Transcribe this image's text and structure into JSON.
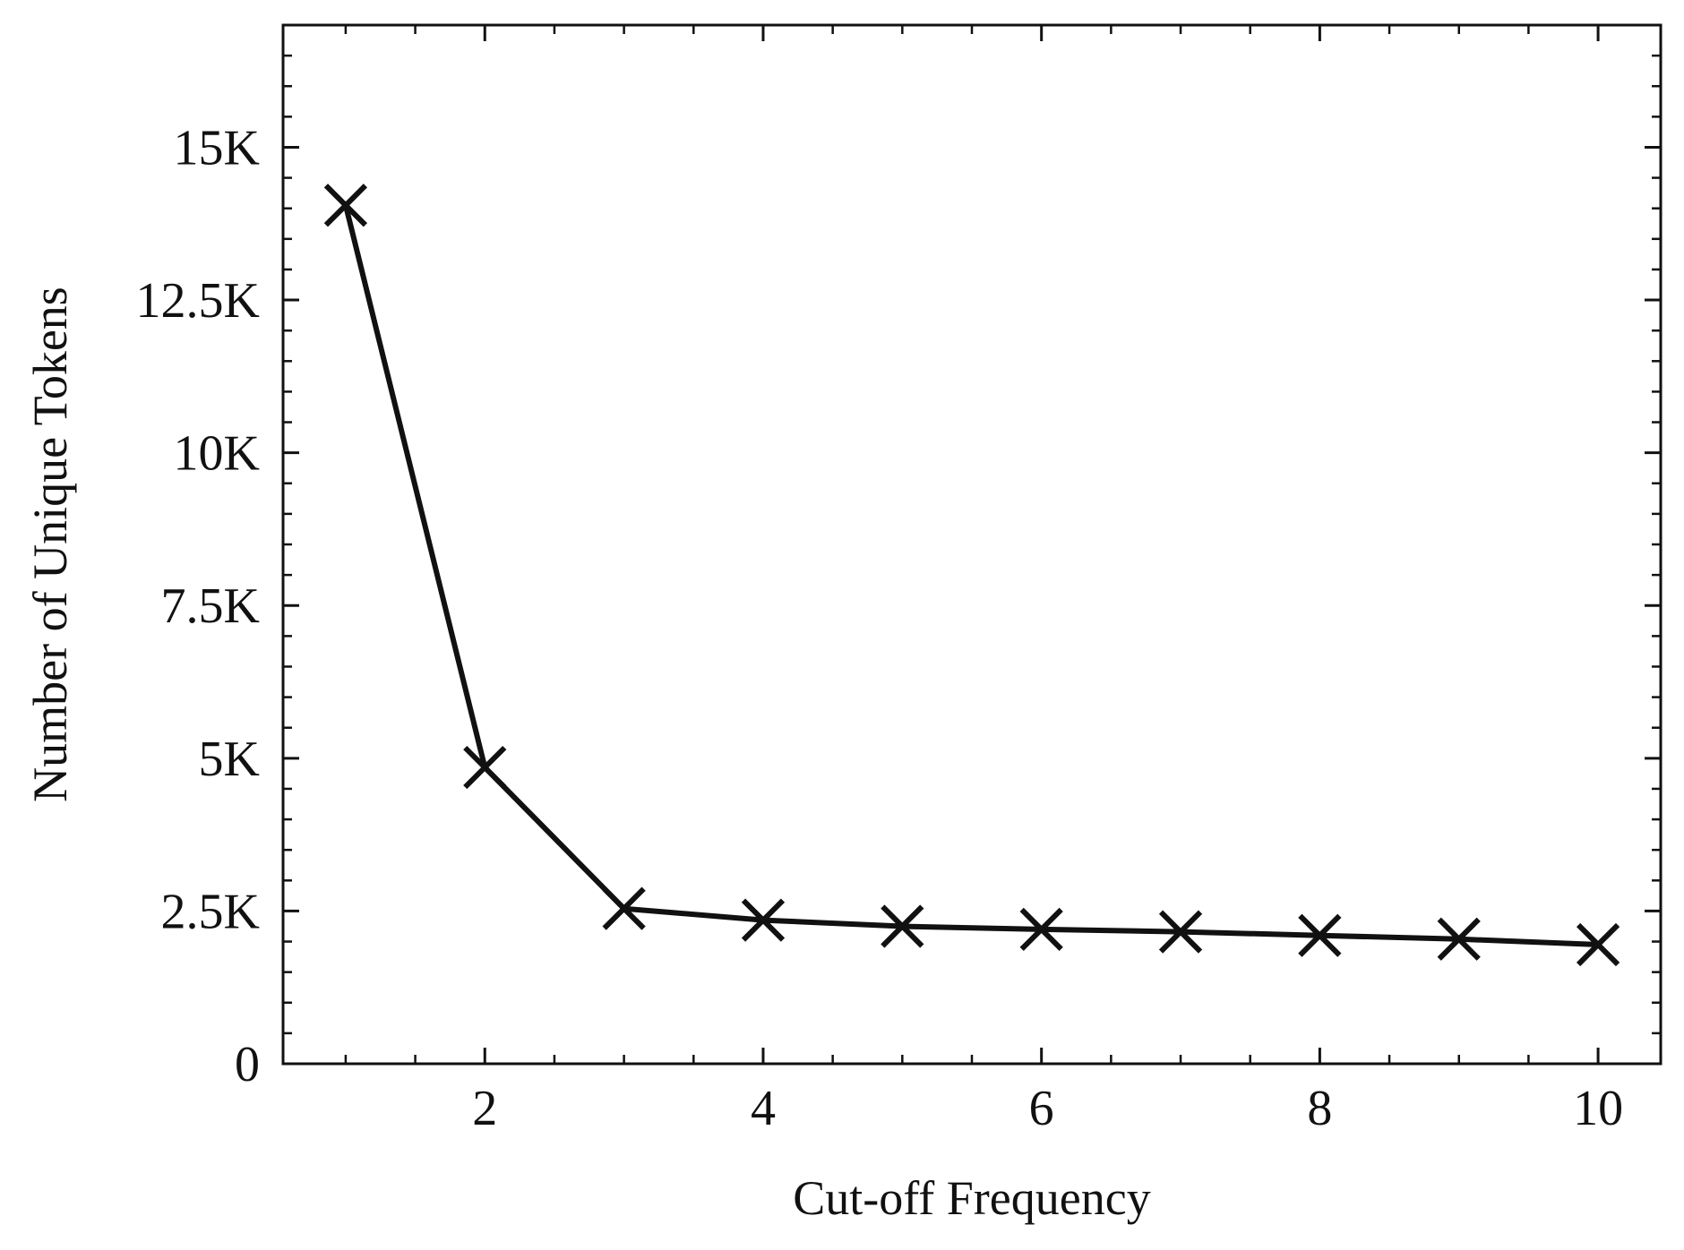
{
  "chart_data": {
    "type": "line",
    "title": "",
    "xlabel": "Cut-off Frequency",
    "ylabel": "Number of Unique Tokens",
    "x": [
      1,
      2,
      3,
      4,
      5,
      6,
      7,
      8,
      9,
      10
    ],
    "series": [
      {
        "values": [
          14050,
          4850,
          2540,
          2350,
          2250,
          2200,
          2160,
          2100,
          2040,
          1950
        ],
        "color": "#111111",
        "marker": "x"
      }
    ],
    "xlim": [
      0.55,
      10.45
    ],
    "ylim": [
      0,
      17000
    ],
    "xticks": [
      2,
      4,
      6,
      8,
      10
    ],
    "xtick_labels": [
      "2",
      "4",
      "6",
      "8",
      "10"
    ],
    "yticks": [
      0,
      2500,
      5000,
      7500,
      10000,
      12500,
      15000
    ],
    "ytick_labels": [
      "0",
      "2.5K",
      "5K",
      "7.5K",
      "10K",
      "12.5K",
      "15K"
    ],
    "x_minor_step": 0.5,
    "y_minor_step": 500,
    "grid": false,
    "legend": "none"
  }
}
